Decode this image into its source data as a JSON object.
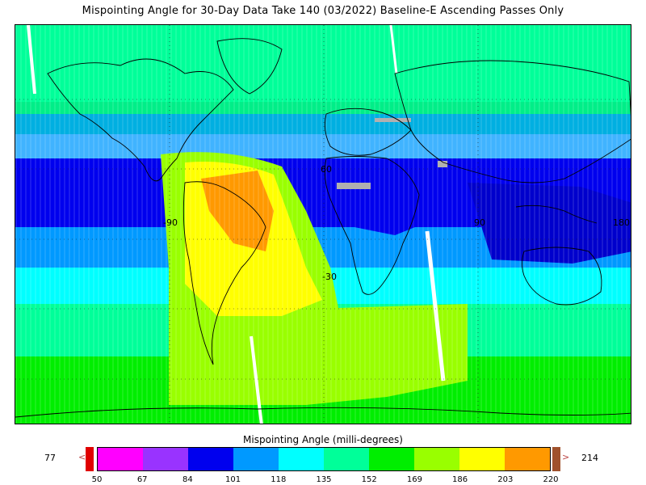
{
  "title": "Mispointing Angle for 30-Day Data Take 140 (03/2022) Baseline-E Ascending Passes Only",
  "map": {
    "lon_labels": [
      "-90",
      "90",
      "180"
    ],
    "lat_labels": [
      "60",
      "-30"
    ],
    "grid": true,
    "colors": {
      "frame": "#000000",
      "coastline": "#000000",
      "gap": "#ffffff",
      "missing": "#b0b0b0"
    }
  },
  "colorbar": {
    "title": "Mispointing Angle (milli-degrees)",
    "min_value": "77",
    "max_value": "214",
    "min_arrow": "<",
    "max_arrow": ">",
    "under_color": "#e00000",
    "over_color": "#a0522d",
    "colors": [
      "#ff00ff",
      "#9933ff",
      "#0000ee",
      "#0099ff",
      "#00ffff",
      "#00ff99",
      "#00ee00",
      "#99ff00",
      "#ffff00",
      "#ff9900"
    ],
    "ticks": [
      "50",
      "67",
      "84",
      "101",
      "118",
      "135",
      "152",
      "169",
      "186",
      "203",
      "220"
    ]
  }
}
